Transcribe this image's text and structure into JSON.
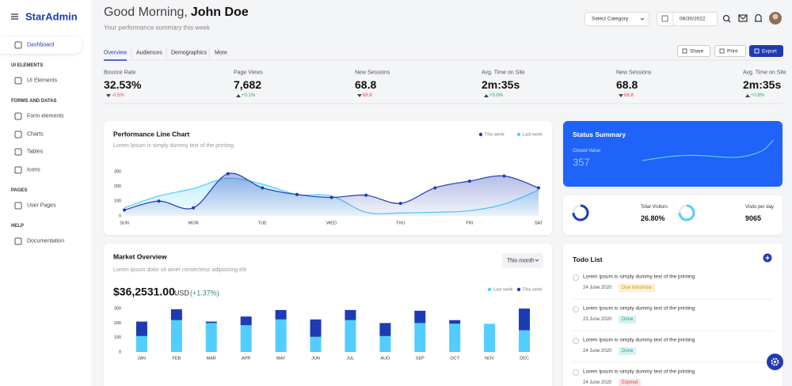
{
  "header": {
    "brand": "StarAdmin",
    "greeting": "Good Morning,",
    "user_name": "John Doe",
    "subtitle": "Your performance summary this week",
    "category_select": "Select Category",
    "date": "06/30/2022"
  },
  "sidebar": {
    "active": "Dashboard",
    "sections": [
      {
        "title": "UI ELEMENTS",
        "items": [
          "UI Elements"
        ]
      },
      {
        "title": "FORMS AND DATAS",
        "items": [
          "Form elements",
          "Charts",
          "Tables",
          "Icons"
        ]
      },
      {
        "title": "PAGES",
        "items": [
          "User Pages"
        ]
      },
      {
        "title": "HELP",
        "items": [
          "Documentation"
        ]
      }
    ]
  },
  "tabs": [
    "Overview",
    "Audiences",
    "Demographics",
    "More"
  ],
  "actions": [
    "Share",
    "Print",
    "Export"
  ],
  "stats": [
    {
      "label": "Bounce Rate",
      "value": "32.53%",
      "change": "-0.5%",
      "trend": "down"
    },
    {
      "label": "Page Views",
      "value": "7,682",
      "change": "+0.1%",
      "trend": "up"
    },
    {
      "label": "New Sessions",
      "value": "68.8",
      "change": "68.8",
      "trend": "down"
    },
    {
      "label": "Avg. Time on Site",
      "value": "2m:35s",
      "change": "+0.8%",
      "trend": "up"
    },
    {
      "label": "New Sessions",
      "value": "68.8",
      "change": "68.8",
      "trend": "down"
    },
    {
      "label": "Avg. Time on Site",
      "value": "2m:35s",
      "change": "+0.8%",
      "trend": "up"
    }
  ],
  "status_summary": {
    "title": "Status Summary",
    "label": "Closed Value",
    "value": "357"
  },
  "visitors": {
    "total_label": "Total Visitors",
    "total_value": "26.80%",
    "per_day_label": "Visits per day",
    "per_day_value": "9065"
  },
  "todo": {
    "title": "Todo List",
    "items": [
      {
        "text": "Lorem Ipsum is simply dummy text of the printing",
        "date": "24 June 2020",
        "status": "Due tomorrow",
        "tone": "warning"
      },
      {
        "text": "Lorem Ipsum is simply dummy text of the printing",
        "date": "23 June 2020",
        "status": "Done",
        "tone": "success"
      },
      {
        "text": "Lorem Ipsum is simply dummy text of the printing",
        "date": "24 June 2020",
        "status": "Done",
        "tone": "success"
      },
      {
        "text": "Lorem Ipsum is simply dummy text of the printing",
        "date": "24 June 2020",
        "status": "Expired",
        "tone": "danger"
      }
    ]
  },
  "chart_data": [
    {
      "type": "line",
      "title": "Performance Line Chart",
      "subtitle": "Lorem Ipsum is simply dummy text of the printing",
      "categories": [
        "SUN",
        null,
        "MON",
        null,
        "TUE",
        null,
        "WED",
        null,
        "THU",
        null,
        "FRI",
        null,
        "SAT"
      ],
      "series": [
        {
          "name": "This week",
          "color": "#1f3bb3",
          "values": [
            40,
            100,
            55,
            285,
            190,
            145,
            125,
            140,
            85,
            190,
            235,
            270,
            190
          ]
        },
        {
          "name": "Last week",
          "color": "#52cdff",
          "values": [
            55,
            135,
            185,
            255,
            215,
            145,
            135,
            25,
            20,
            25,
            35,
            80,
            175
          ]
        }
      ],
      "ylim": [
        0,
        350
      ],
      "yticks": [
        0,
        100,
        200,
        300
      ]
    },
    {
      "type": "stacked_bar",
      "title": "Market Overview",
      "subtitle": "Lorem ipsum dolor sit amet consectetur adipisicing elit",
      "period": "This month",
      "total": "$36,2531.00",
      "currency": "USD",
      "change": "(+1.37%)",
      "categories": [
        "JAN",
        "FEB",
        "MAR",
        "APR",
        "MAY",
        "JUN",
        "JUL",
        "AUG",
        "SEP",
        "OCT",
        "NOV",
        "DEC"
      ],
      "series": [
        {
          "name": "Last week",
          "color": "#52cdff",
          "values": [
            110,
            220,
            200,
            185,
            225,
            105,
            220,
            110,
            200,
            195,
            195,
            150
          ]
        },
        {
          "name": "This week",
          "color": "#1f3bb3",
          "values": [
            100,
            75,
            10,
            60,
            65,
            120,
            70,
            90,
            85,
            25,
            0,
            150
          ]
        }
      ],
      "ylim": [
        0,
        330
      ],
      "yticks": [
        0,
        100,
        200,
        300
      ]
    }
  ]
}
